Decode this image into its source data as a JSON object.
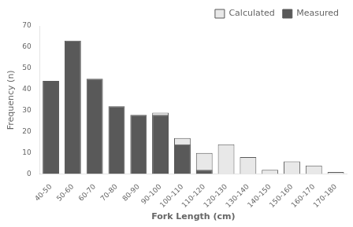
{
  "chart_data": {
    "type": "bar",
    "categories": [
      "40-50",
      "50-60",
      "60-70",
      "70-80",
      "80-90",
      "90-100",
      "100-110",
      "110-120",
      "120-130",
      "130-140",
      "140-150",
      "150-160",
      "160-170",
      "170-180"
    ],
    "series": [
      {
        "name": "Calculated",
        "color": "#e8e8e8",
        "values": [
          0,
          0,
          0,
          0,
          0,
          29,
          17,
          10,
          14,
          8,
          2,
          6,
          4,
          1
        ]
      },
      {
        "name": "Measured",
        "color": "#595959",
        "values": [
          44,
          63,
          45,
          32,
          28,
          28,
          14,
          2,
          0,
          0,
          0,
          0,
          0,
          0
        ]
      }
    ],
    "xlabel": "Fork Length (cm)",
    "ylabel": "Frequency (n)",
    "ylim": [
      0,
      70
    ],
    "yticks": [
      0,
      10,
      20,
      30,
      40,
      50,
      60,
      70
    ],
    "grid": false,
    "legend": "upper right"
  }
}
